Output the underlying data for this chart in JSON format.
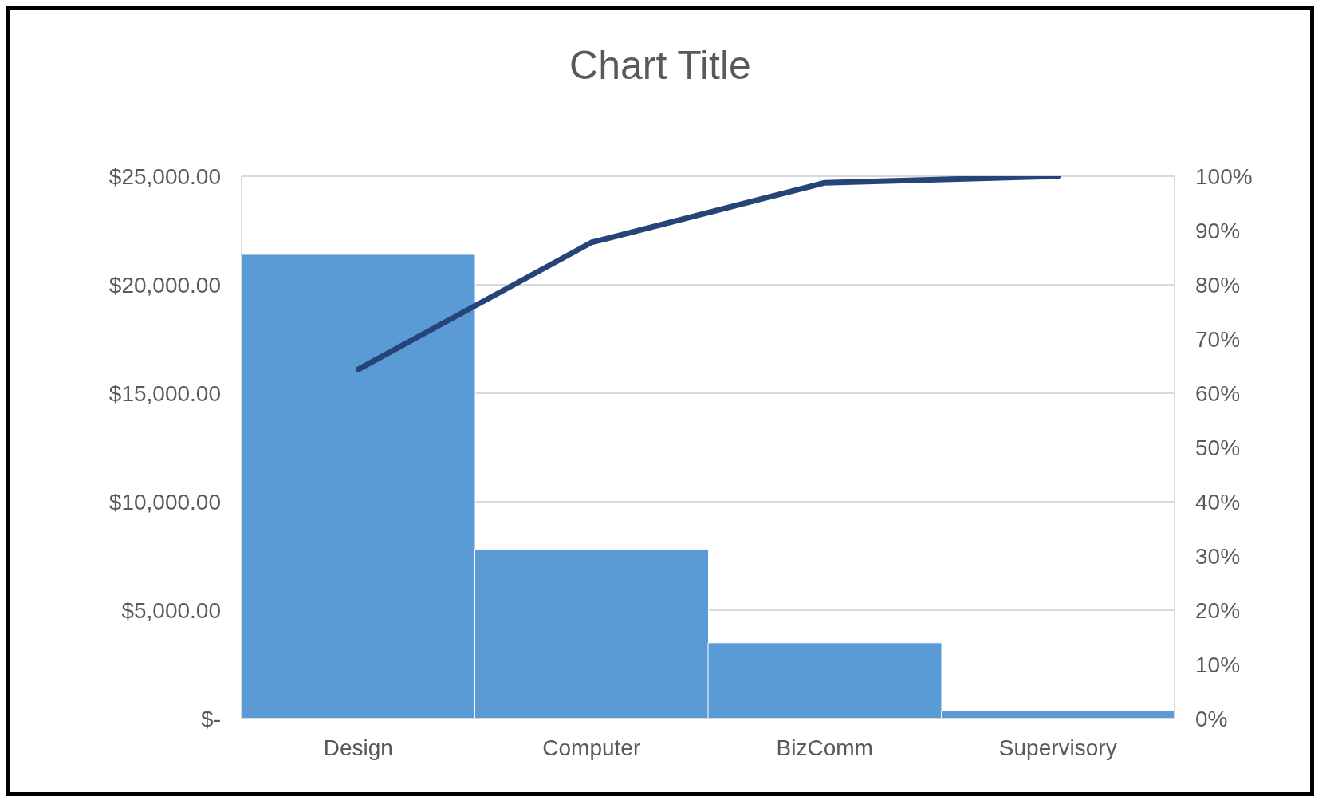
{
  "chart_data": {
    "type": "bar",
    "title": "Chart Title",
    "categories": [
      "Design",
      "Computer",
      "BizComm",
      "Supervisory"
    ],
    "series": [
      {
        "color": "#5b9bd5",
        "values": [
          21400,
          7800,
          3500,
          350
        ]
      },
      {
        "type": "line",
        "axis": "y2",
        "color": "#264478",
        "values": [
          64.4,
          87.8,
          98.8,
          100
        ]
      }
    ],
    "ylim": [
      0,
      25000
    ],
    "yticks": [
      {
        "value": 0,
        "label": "$-"
      },
      {
        "value": 5000,
        "label": "$5,000.00"
      },
      {
        "value": 10000,
        "label": "$10,000.00"
      },
      {
        "value": 15000,
        "label": "$15,000.00"
      },
      {
        "value": 20000,
        "label": "$20,000.00"
      },
      {
        "value": 25000,
        "label": "$25,000.00"
      }
    ],
    "y2lim": [
      0,
      100
    ],
    "y2ticks": [
      {
        "value": 0,
        "label": "0%"
      },
      {
        "value": 10,
        "label": "10%"
      },
      {
        "value": 20,
        "label": "20%"
      },
      {
        "value": 30,
        "label": "30%"
      },
      {
        "value": 40,
        "label": "40%"
      },
      {
        "value": 50,
        "label": "50%"
      },
      {
        "value": 60,
        "label": "60%"
      },
      {
        "value": 70,
        "label": "70%"
      },
      {
        "value": 80,
        "label": "80%"
      },
      {
        "value": 90,
        "label": "90%"
      },
      {
        "value": 100,
        "label": "100%"
      }
    ],
    "grid": "y",
    "marker": "none",
    "line_style": "solid",
    "legend": false
  }
}
